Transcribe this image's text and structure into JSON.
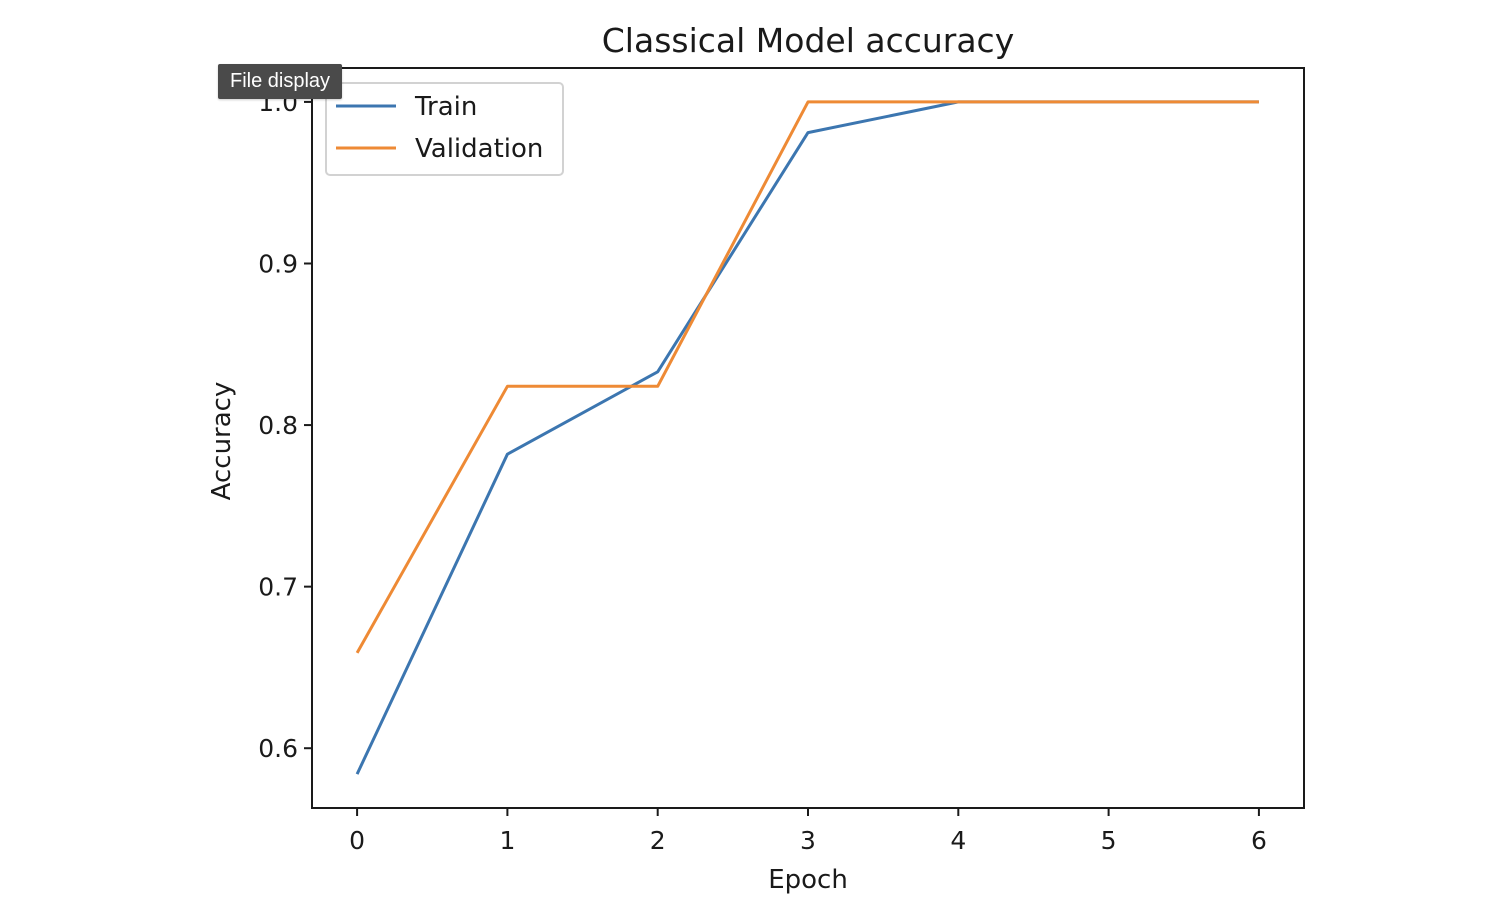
{
  "tooltip": {
    "label": "File display"
  },
  "chart_data": {
    "type": "line",
    "title": "Classical Model accuracy",
    "xlabel": "Epoch",
    "ylabel": "Accuracy",
    "x": [
      0,
      1,
      2,
      3,
      4,
      5,
      6
    ],
    "xlim": [
      -0.3,
      6.3
    ],
    "ylim": [
      0.563,
      1.021
    ],
    "xticks": [
      0,
      1,
      2,
      3,
      4,
      5,
      6
    ],
    "yticks": [
      0.6,
      0.7,
      0.8,
      0.9,
      1.0
    ],
    "ytick_labels": [
      "0.6",
      "0.7",
      "0.8",
      "0.9",
      "1.0"
    ],
    "grid": false,
    "legend_position": "upper-left",
    "series": [
      {
        "name": "Train",
        "color": "#3c76b0",
        "values": [
          0.584,
          0.782,
          0.833,
          0.981,
          1.0,
          1.0,
          1.0
        ]
      },
      {
        "name": "Validation",
        "color": "#ee8a35",
        "values": [
          0.659,
          0.824,
          0.824,
          1.0,
          1.0,
          1.0,
          1.0
        ]
      }
    ]
  }
}
